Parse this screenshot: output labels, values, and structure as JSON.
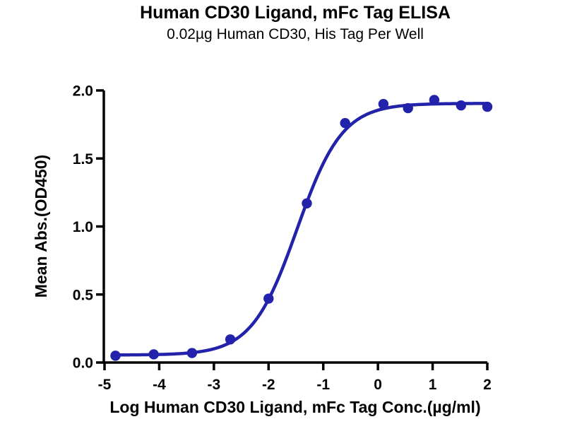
{
  "title": "Human CD30 Ligand, mFc Tag ELISA",
  "subtitle": "0.02µg Human CD30, His Tag Per Well",
  "chart_data": {
    "type": "scatter",
    "title": "Human CD30 Ligand, mFc Tag ELISA",
    "subtitle": "0.02µg Human CD30, His Tag Per Well",
    "xlabel": "Log Human CD30 Ligand, mFc Tag Conc.(µg/ml)",
    "ylabel": "Mean Abs.(OD450)",
    "xlim": [
      -5,
      2
    ],
    "ylim": [
      0,
      2
    ],
    "x_ticks": [
      -5,
      -4,
      -3,
      -2,
      -1,
      0,
      1,
      2
    ],
    "x_tick_labels": [
      "-5",
      "-4",
      "-3",
      "-2",
      "-1",
      "0",
      "1",
      "2"
    ],
    "y_ticks": [
      0,
      0.5,
      1.0,
      1.5,
      2.0
    ],
    "y_tick_labels": [
      "0.0",
      "0.5",
      "1.0",
      "1.5",
      "2.0"
    ],
    "grid": false,
    "legend": false,
    "series_name": "Human CD30 Ligand, mFc Tag",
    "points": [
      [
        -4.8,
        0.05
      ],
      [
        -4.1,
        0.06
      ],
      [
        -3.4,
        0.07
      ],
      [
        -2.7,
        0.17
      ],
      [
        -2.0,
        0.47
      ],
      [
        -1.3,
        1.17
      ],
      [
        -0.6,
        1.76
      ],
      [
        0.1,
        1.9
      ],
      [
        0.55,
        1.87
      ],
      [
        1.03,
        1.93
      ],
      [
        1.52,
        1.89
      ],
      [
        2.0,
        1.88
      ]
    ],
    "fit_curve": {
      "model": "4PL",
      "bottom": 0.055,
      "top": 1.905,
      "log_ec50": -1.48,
      "hill": 1.05,
      "x_start": -4.8,
      "x_end": 2.0
    },
    "colors": {
      "series": "#2222aa",
      "axis": "#000000",
      "background": "#ffffff"
    }
  }
}
